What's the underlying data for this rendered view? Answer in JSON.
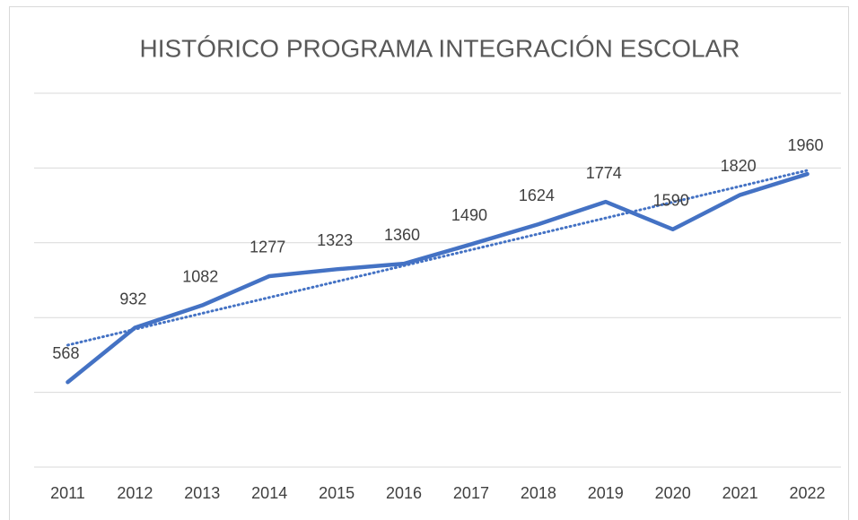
{
  "chart_data": {
    "type": "line",
    "title": "HISTÓRICO PROGRAMA INTEGRACIÓN ESCOLAR",
    "categories": [
      "2011",
      "2012",
      "2013",
      "2014",
      "2015",
      "2016",
      "2017",
      "2018",
      "2019",
      "2020",
      "2021",
      "2022"
    ],
    "values": [
      568,
      932,
      1082,
      1277,
      1323,
      1360,
      1490,
      1624,
      1774,
      1590,
      1820,
      1960
    ],
    "color": "#4472c4",
    "trendline": "linear",
    "ylim": [
      0,
      2500
    ],
    "yticks": [
      0,
      500,
      1000,
      1500,
      2000,
      2500
    ],
    "grid": true
  }
}
